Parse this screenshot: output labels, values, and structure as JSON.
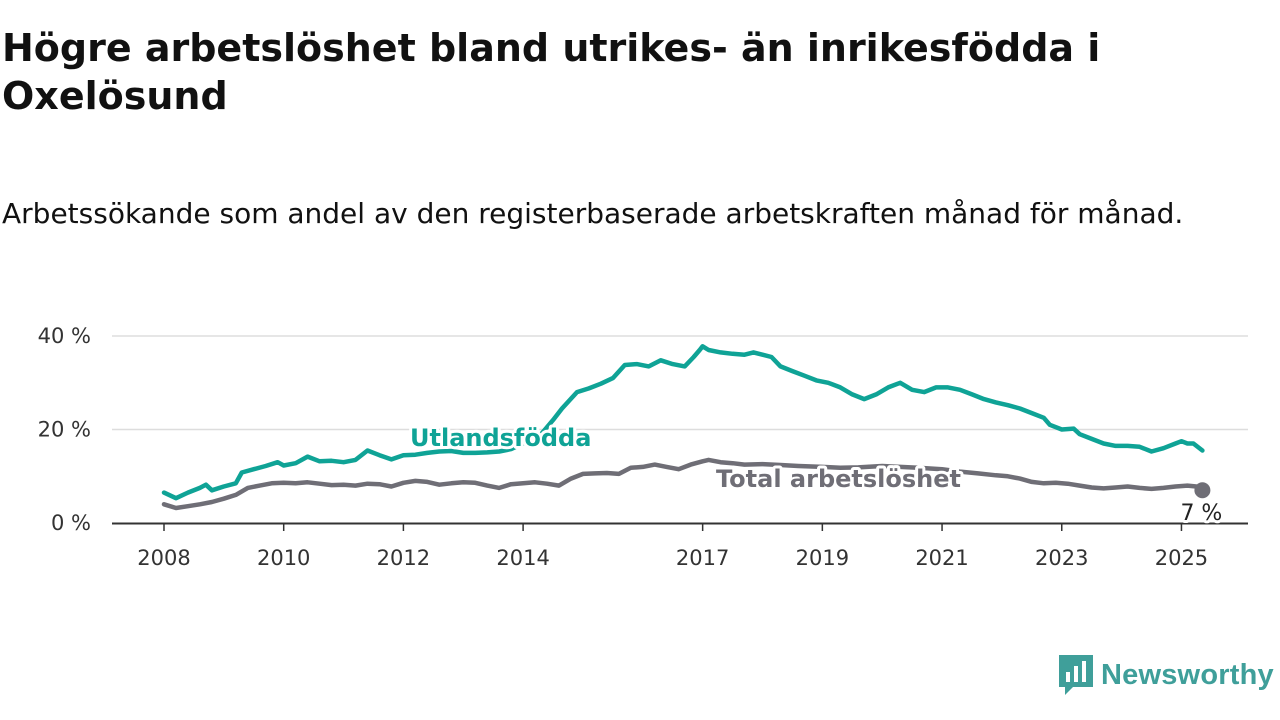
{
  "title": "Högre arbetslöshet bland utrikes- än inrikesfödda i Oxelösund",
  "subtitle": "Arbetssökande som andel av den registerbaserade arbetskraften månad för månad.",
  "brand": {
    "name": "Newsworthy",
    "color": "#3f9f9a",
    "icon": "newsworthy-logo-icon"
  },
  "chart_data": {
    "type": "line",
    "x_unit": "year",
    "xlim": [
      2007.75,
      2026.15
    ],
    "ylim": [
      0,
      40
    ],
    "y_ticks": [
      {
        "value": 0,
        "label": "0 %"
      },
      {
        "value": 20,
        "label": "20 %"
      },
      {
        "value": 40,
        "label": "40 %"
      }
    ],
    "x_ticks": [
      {
        "value": 2008,
        "label": "2008"
      },
      {
        "value": 2010,
        "label": "2010"
      },
      {
        "value": 2012,
        "label": "2012"
      },
      {
        "value": 2014,
        "label": "2014"
      },
      {
        "value": 2017,
        "label": "2017"
      },
      {
        "value": 2019,
        "label": "2019"
      },
      {
        "value": 2021,
        "label": "2021"
      },
      {
        "value": 2023,
        "label": "2023"
      },
      {
        "value": 2025,
        "label": "2025"
      }
    ],
    "grid": "horizontal",
    "series": [
      {
        "name": "Utlandsfödda",
        "color": "#0fa396",
        "points": [
          [
            2008.0,
            6.5
          ],
          [
            2008.2,
            5.3
          ],
          [
            2008.4,
            6.5
          ],
          [
            2008.6,
            7.5
          ],
          [
            2008.7,
            8.2
          ],
          [
            2008.8,
            7.0
          ],
          [
            2009.0,
            7.8
          ],
          [
            2009.2,
            8.5
          ],
          [
            2009.3,
            10.8
          ],
          [
            2009.5,
            11.5
          ],
          [
            2009.7,
            12.2
          ],
          [
            2009.9,
            13.0
          ],
          [
            2010.0,
            12.3
          ],
          [
            2010.2,
            12.8
          ],
          [
            2010.4,
            14.2
          ],
          [
            2010.6,
            13.2
          ],
          [
            2010.8,
            13.3
          ],
          [
            2011.0,
            13.0
          ],
          [
            2011.2,
            13.5
          ],
          [
            2011.4,
            15.5
          ],
          [
            2011.6,
            14.5
          ],
          [
            2011.8,
            13.6
          ],
          [
            2012.0,
            14.5
          ],
          [
            2012.2,
            14.6
          ],
          [
            2012.4,
            15.0
          ],
          [
            2012.6,
            15.3
          ],
          [
            2012.8,
            15.4
          ],
          [
            2013.0,
            15.0
          ],
          [
            2013.2,
            15.0
          ],
          [
            2013.4,
            15.1
          ],
          [
            2013.6,
            15.3
          ],
          [
            2013.8,
            15.8
          ],
          [
            2014.0,
            17.0
          ],
          [
            2014.3,
            19.0
          ],
          [
            2014.5,
            22.0
          ],
          [
            2014.65,
            24.5
          ],
          [
            2014.9,
            28.0
          ],
          [
            2015.1,
            28.8
          ],
          [
            2015.3,
            29.8
          ],
          [
            2015.5,
            31.0
          ],
          [
            2015.7,
            33.8
          ],
          [
            2015.9,
            34.0
          ],
          [
            2016.1,
            33.5
          ],
          [
            2016.3,
            34.8
          ],
          [
            2016.5,
            34.0
          ],
          [
            2016.7,
            33.5
          ],
          [
            2016.85,
            35.5
          ],
          [
            2016.95,
            37.0
          ],
          [
            2017.0,
            37.8
          ],
          [
            2017.1,
            37.0
          ],
          [
            2017.3,
            36.5
          ],
          [
            2017.5,
            36.2
          ],
          [
            2017.7,
            36.0
          ],
          [
            2017.85,
            36.5
          ],
          [
            2018.0,
            36.0
          ],
          [
            2018.15,
            35.5
          ],
          [
            2018.3,
            33.5
          ],
          [
            2018.5,
            32.5
          ],
          [
            2018.7,
            31.5
          ],
          [
            2018.9,
            30.5
          ],
          [
            2019.1,
            30.0
          ],
          [
            2019.3,
            29.0
          ],
          [
            2019.5,
            27.5
          ],
          [
            2019.7,
            26.5
          ],
          [
            2019.9,
            27.5
          ],
          [
            2020.1,
            29.0
          ],
          [
            2020.3,
            30.0
          ],
          [
            2020.5,
            28.5
          ],
          [
            2020.7,
            28.0
          ],
          [
            2020.9,
            29.0
          ],
          [
            2021.1,
            29.0
          ],
          [
            2021.3,
            28.5
          ],
          [
            2021.5,
            27.5
          ],
          [
            2021.7,
            26.5
          ],
          [
            2021.9,
            25.8
          ],
          [
            2022.1,
            25.2
          ],
          [
            2022.3,
            24.5
          ],
          [
            2022.5,
            23.5
          ],
          [
            2022.7,
            22.5
          ],
          [
            2022.8,
            21.0
          ],
          [
            2023.0,
            20.0
          ],
          [
            2023.2,
            20.2
          ],
          [
            2023.3,
            19.0
          ],
          [
            2023.5,
            18.0
          ],
          [
            2023.7,
            17.0
          ],
          [
            2023.9,
            16.5
          ],
          [
            2024.1,
            16.5
          ],
          [
            2024.3,
            16.3
          ],
          [
            2024.5,
            15.3
          ],
          [
            2024.7,
            16.0
          ],
          [
            2024.9,
            17.0
          ],
          [
            2025.0,
            17.5
          ],
          [
            2025.1,
            17.0
          ],
          [
            2025.2,
            17.0
          ],
          [
            2025.35,
            15.5
          ]
        ]
      },
      {
        "name": "Total arbetslöshet",
        "color": "#6f6e76",
        "end_label": "7 %",
        "points": [
          [
            2008.0,
            4.0
          ],
          [
            2008.2,
            3.2
          ],
          [
            2008.4,
            3.6
          ],
          [
            2008.6,
            4.0
          ],
          [
            2008.8,
            4.5
          ],
          [
            2009.0,
            5.2
          ],
          [
            2009.2,
            6.0
          ],
          [
            2009.4,
            7.5
          ],
          [
            2009.6,
            8.0
          ],
          [
            2009.8,
            8.5
          ],
          [
            2010.0,
            8.6
          ],
          [
            2010.2,
            8.5
          ],
          [
            2010.4,
            8.7
          ],
          [
            2010.6,
            8.4
          ],
          [
            2010.8,
            8.1
          ],
          [
            2011.0,
            8.2
          ],
          [
            2011.2,
            8.0
          ],
          [
            2011.4,
            8.4
          ],
          [
            2011.6,
            8.3
          ],
          [
            2011.8,
            7.8
          ],
          [
            2012.0,
            8.6
          ],
          [
            2012.2,
            9.0
          ],
          [
            2012.4,
            8.8
          ],
          [
            2012.6,
            8.2
          ],
          [
            2012.8,
            8.5
          ],
          [
            2013.0,
            8.7
          ],
          [
            2013.2,
            8.6
          ],
          [
            2013.4,
            8.0
          ],
          [
            2013.6,
            7.5
          ],
          [
            2013.8,
            8.3
          ],
          [
            2014.0,
            8.5
          ],
          [
            2014.2,
            8.7
          ],
          [
            2014.4,
            8.4
          ],
          [
            2014.6,
            8.0
          ],
          [
            2014.8,
            9.5
          ],
          [
            2015.0,
            10.5
          ],
          [
            2015.2,
            10.6
          ],
          [
            2015.4,
            10.7
          ],
          [
            2015.6,
            10.5
          ],
          [
            2015.8,
            11.8
          ],
          [
            2016.0,
            12.0
          ],
          [
            2016.2,
            12.5
          ],
          [
            2016.4,
            12.0
          ],
          [
            2016.6,
            11.5
          ],
          [
            2016.8,
            12.5
          ],
          [
            2017.0,
            13.2
          ],
          [
            2017.1,
            13.5
          ],
          [
            2017.3,
            13.0
          ],
          [
            2017.5,
            12.8
          ],
          [
            2017.7,
            12.5
          ],
          [
            2018.0,
            12.6
          ],
          [
            2018.3,
            12.4
          ],
          [
            2018.6,
            12.2
          ],
          [
            2019.0,
            12.0
          ],
          [
            2019.3,
            11.8
          ],
          [
            2019.6,
            11.9
          ],
          [
            2020.0,
            12.2
          ],
          [
            2020.3,
            12.0
          ],
          [
            2020.6,
            11.8
          ],
          [
            2021.0,
            11.5
          ],
          [
            2021.3,
            11.0
          ],
          [
            2021.6,
            10.6
          ],
          [
            2021.9,
            10.2
          ],
          [
            2022.1,
            10.0
          ],
          [
            2022.3,
            9.5
          ],
          [
            2022.5,
            8.8
          ],
          [
            2022.7,
            8.5
          ],
          [
            2022.9,
            8.6
          ],
          [
            2023.1,
            8.4
          ],
          [
            2023.3,
            8.0
          ],
          [
            2023.5,
            7.6
          ],
          [
            2023.7,
            7.4
          ],
          [
            2023.9,
            7.6
          ],
          [
            2024.1,
            7.8
          ],
          [
            2024.3,
            7.5
          ],
          [
            2024.5,
            7.3
          ],
          [
            2024.7,
            7.5
          ],
          [
            2024.9,
            7.8
          ],
          [
            2025.1,
            8.0
          ],
          [
            2025.25,
            7.8
          ],
          [
            2025.35,
            7.0
          ]
        ]
      }
    ]
  }
}
